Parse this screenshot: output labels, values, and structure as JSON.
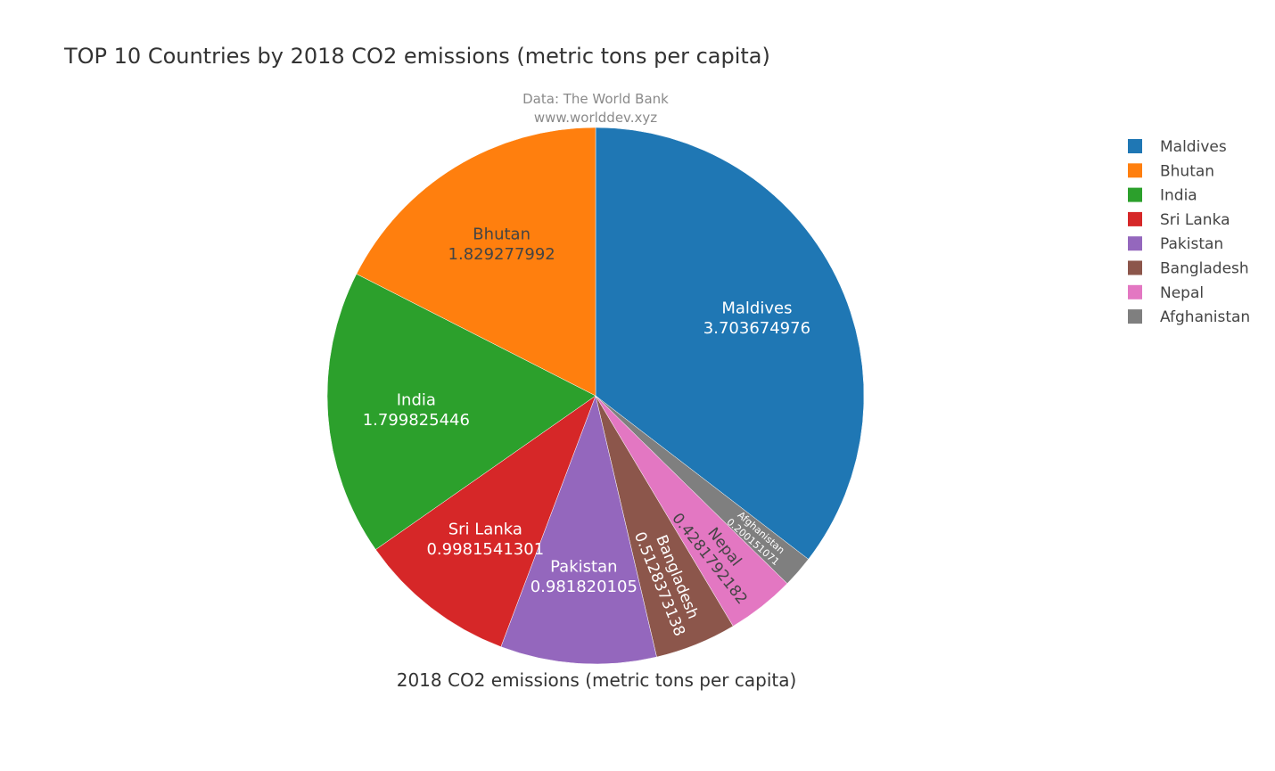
{
  "chart_data": {
    "type": "pie",
    "title": "TOP 10 Countries by 2018 CO2 emissions (metric tons per capita)",
    "subtitle_lines": [
      "Data: The World Bank",
      "www.worlddev.xyz"
    ],
    "xlabel": "2018 CO2 emissions (metric tons per capita)",
    "legend_position": "right",
    "slices": [
      {
        "label": "Maldives",
        "value": 3.703674976,
        "value_text": "3.703674976",
        "color": "#1f77b4",
        "text_color": "#ffffff"
      },
      {
        "label": "Afghanistan",
        "value": 0.200151071,
        "value_text": "0.200151071",
        "color": "#7f7f7f",
        "text_color": "#ffffff"
      },
      {
        "label": "Nepal",
        "value": 0.4281792182,
        "value_text": "0.4281792182",
        "color": "#e377c2",
        "text_color": "#444444"
      },
      {
        "label": "Bangladesh",
        "value": 0.5128373138,
        "value_text": "0.5128373138",
        "color": "#8c564b",
        "text_color": "#ffffff"
      },
      {
        "label": "Pakistan",
        "value": 0.981820105,
        "value_text": "0.981820105",
        "color": "#9467bd",
        "text_color": "#ffffff"
      },
      {
        "label": "Sri Lanka",
        "value": 0.9981541301,
        "value_text": "0.9981541301",
        "color": "#d62728",
        "text_color": "#ffffff"
      },
      {
        "label": "India",
        "value": 1.799825446,
        "value_text": "1.799825446",
        "color": "#2ca02c",
        "text_color": "#ffffff"
      },
      {
        "label": "Bhutan",
        "value": 1.829277992,
        "value_text": "1.829277992",
        "color": "#ff7f0e",
        "text_color": "#444444"
      }
    ],
    "legend_order": [
      "Maldives",
      "Bhutan",
      "India",
      "Sri Lanka",
      "Pakistan",
      "Bangladesh",
      "Nepal",
      "Afghanistan"
    ]
  }
}
